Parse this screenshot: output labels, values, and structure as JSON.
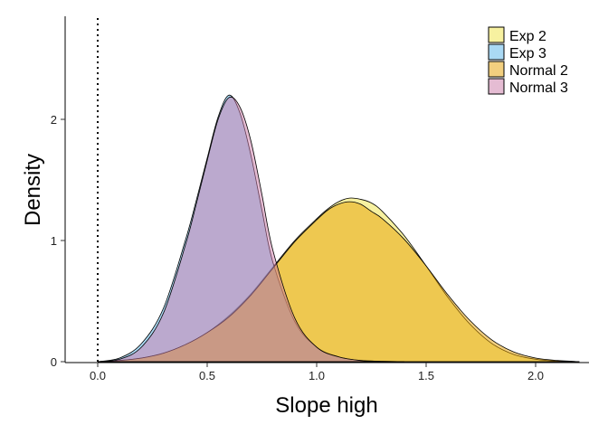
{
  "chart_data": {
    "type": "area",
    "xlabel": "Slope high",
    "ylabel": "Density",
    "xlim": [
      -0.12,
      2.26
    ],
    "ylim": [
      0,
      2.85
    ],
    "x_ticks": [
      "0.0",
      "0.5",
      "1.0",
      "1.5",
      "2.0"
    ],
    "y_ticks": [
      "0",
      "1",
      "2"
    ],
    "reference_line": {
      "x": 0,
      "style": "dotted"
    },
    "legend_position": "top-right",
    "grid": false,
    "series": [
      {
        "name": "Exp 2",
        "color": "#F0E442",
        "x": [
          0.0,
          0.1,
          0.2,
          0.3,
          0.4,
          0.5,
          0.6,
          0.7,
          0.8,
          0.9,
          1.0,
          1.05,
          1.1,
          1.15,
          1.2,
          1.25,
          1.3,
          1.4,
          1.5,
          1.6,
          1.7,
          1.8,
          1.9,
          2.0,
          2.1,
          2.2
        ],
        "y": [
          0.0,
          0.01,
          0.03,
          0.07,
          0.14,
          0.24,
          0.38,
          0.56,
          0.78,
          1.0,
          1.18,
          1.26,
          1.32,
          1.35,
          1.34,
          1.31,
          1.24,
          1.04,
          0.79,
          0.53,
          0.31,
          0.15,
          0.06,
          0.02,
          0.005,
          0.0
        ]
      },
      {
        "name": "Exp 3",
        "color": "#56B4E9",
        "x": [
          0.0,
          0.1,
          0.2,
          0.3,
          0.4,
          0.45,
          0.5,
          0.55,
          0.6,
          0.65,
          0.7,
          0.75,
          0.8,
          0.9,
          1.0,
          1.1,
          1.2,
          1.3,
          1.4
        ],
        "y": [
          0.0,
          0.03,
          0.15,
          0.44,
          1.0,
          1.33,
          1.68,
          2.02,
          2.2,
          2.05,
          1.7,
          1.25,
          0.82,
          0.33,
          0.12,
          0.04,
          0.01,
          0.003,
          0.0
        ]
      },
      {
        "name": "Normal 2",
        "color": "#E69F00",
        "x": [
          0.0,
          0.1,
          0.2,
          0.3,
          0.4,
          0.5,
          0.6,
          0.7,
          0.8,
          0.9,
          1.0,
          1.05,
          1.1,
          1.15,
          1.2,
          1.25,
          1.3,
          1.4,
          1.5,
          1.6,
          1.7,
          1.8,
          1.9,
          2.0,
          2.1,
          2.2
        ],
        "y": [
          0.0,
          0.01,
          0.03,
          0.07,
          0.14,
          0.24,
          0.37,
          0.55,
          0.77,
          0.99,
          1.17,
          1.25,
          1.3,
          1.32,
          1.3,
          1.24,
          1.18,
          1.01,
          0.79,
          0.55,
          0.34,
          0.18,
          0.08,
          0.03,
          0.01,
          0.0
        ]
      },
      {
        "name": "Normal 3",
        "color": "#CC79A7",
        "x": [
          0.0,
          0.1,
          0.2,
          0.3,
          0.4,
          0.45,
          0.5,
          0.55,
          0.6,
          0.65,
          0.7,
          0.75,
          0.8,
          0.9,
          1.0,
          1.1,
          1.2,
          1.3,
          1.4
        ],
        "y": [
          0.0,
          0.02,
          0.12,
          0.4,
          0.96,
          1.3,
          1.66,
          2.0,
          2.18,
          2.1,
          1.82,
          1.38,
          0.92,
          0.36,
          0.12,
          0.04,
          0.01,
          0.003,
          0.0
        ]
      }
    ]
  },
  "colors": {
    "outline": "#000000",
    "fill_opacity": 0.5
  }
}
